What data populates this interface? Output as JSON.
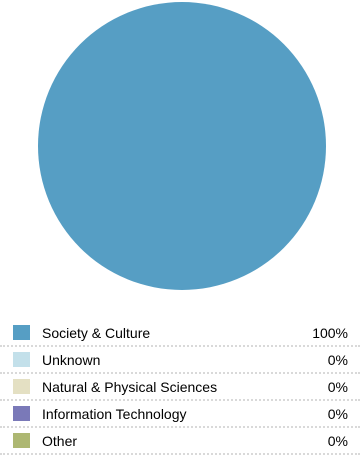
{
  "chart_data": {
    "type": "pie",
    "title": "",
    "legend_position": "bottom",
    "slices": [
      {
        "label": "Society & Culture",
        "value": 100,
        "display": "100%",
        "color": "#569ec4"
      },
      {
        "label": "Unknown",
        "value": 0,
        "display": "0%",
        "color": "#c3e0ea"
      },
      {
        "label": "Natural & Physical Sciences",
        "value": 0,
        "display": "0%",
        "color": "#e4e0c3"
      },
      {
        "label": "Information Technology",
        "value": 0,
        "display": "0%",
        "color": "#7a79b8"
      },
      {
        "label": "Other",
        "value": 0,
        "display": "0%",
        "color": "#adb772"
      }
    ]
  }
}
